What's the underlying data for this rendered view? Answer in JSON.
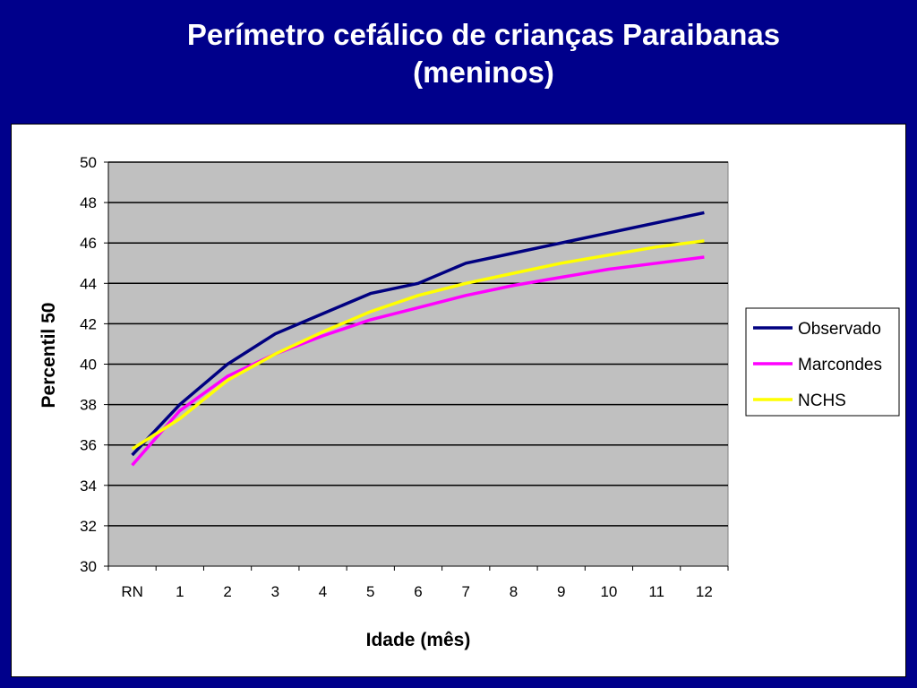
{
  "slide": {
    "title_line1": "Perímetro cefálico de crianças Paraibanas",
    "title_line2": "(meninos)"
  },
  "chart_data": {
    "type": "line",
    "categories": [
      "RN",
      "1",
      "2",
      "3",
      "4",
      "5",
      "6",
      "7",
      "8",
      "9",
      "10",
      "11",
      "12"
    ],
    "series": [
      {
        "name": "Observado",
        "color": "#000080",
        "values": [
          35.5,
          38.0,
          40.0,
          41.5,
          42.5,
          43.5,
          44.0,
          45.0,
          45.5,
          46.0,
          46.5,
          47.0,
          47.5
        ]
      },
      {
        "name": "Marcondes",
        "color": "#FF00FF",
        "values": [
          35.0,
          37.7,
          39.4,
          40.5,
          41.4,
          42.2,
          42.8,
          43.4,
          43.9,
          44.3,
          44.7,
          45.0,
          45.3
        ]
      },
      {
        "name": "NCHS",
        "color": "#FFFF00",
        "values": [
          35.8,
          37.3,
          39.2,
          40.5,
          41.6,
          42.6,
          43.4,
          44.0,
          44.5,
          45.0,
          45.4,
          45.8,
          46.1
        ]
      }
    ],
    "xlabel": "Idade (mês)",
    "ylabel": "Percentil 50",
    "ylim": [
      30,
      50
    ],
    "yticks": [
      30,
      32,
      34,
      36,
      38,
      40,
      42,
      44,
      46,
      48,
      50
    ],
    "grid": true,
    "plot_background": "#C0C0C0",
    "legend_position": "right"
  }
}
